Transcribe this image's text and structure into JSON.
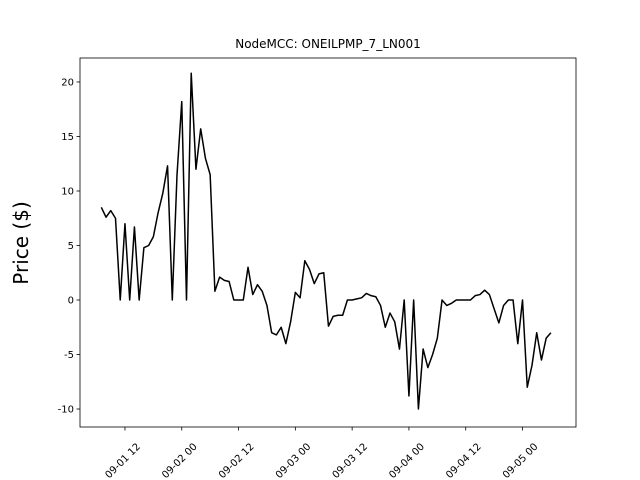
{
  "chart_data": {
    "type": "line",
    "title": "NodeMCC: ONEILPMP_7_LN001",
    "y_label": "Price ($)",
    "color": "#000000",
    "x": [
      7,
      8,
      9,
      10,
      11,
      12,
      13,
      14,
      15,
      16,
      17,
      18,
      19,
      20,
      21,
      22,
      23,
      24,
      25,
      26,
      27,
      28,
      29,
      30,
      31,
      32,
      33,
      34,
      35,
      36,
      37,
      38,
      39,
      40,
      41,
      42,
      43,
      44,
      45,
      46,
      47,
      48,
      49,
      50,
      51,
      52,
      53,
      54,
      55,
      56,
      57,
      58,
      59,
      60,
      61,
      62,
      63,
      64,
      65,
      66,
      67,
      68,
      69,
      70,
      71,
      72,
      73,
      74,
      75,
      76,
      77,
      78,
      79,
      80,
      81,
      82,
      83,
      84,
      85,
      86,
      87,
      88,
      89,
      90,
      91,
      92,
      93,
      94,
      95,
      96,
      97,
      98,
      99,
      100,
      101,
      102
    ],
    "values": [
      8.5,
      7.6,
      8.2,
      7.5,
      0,
      7.0,
      0,
      6.7,
      0,
      4.8,
      5.0,
      5.8,
      8.0,
      9.8,
      12.3,
      0,
      11.5,
      18.2,
      0,
      20.8,
      12.0,
      15.7,
      13.0,
      11.5,
      0.8,
      2.1,
      1.8,
      1.7,
      0,
      0,
      0,
      3.0,
      0.5,
      1.4,
      0.8,
      -0.5,
      -3.0,
      -3.2,
      -2.5,
      -4.0,
      -2.0,
      0.7,
      0.2,
      3.6,
      2.8,
      1.5,
      2.4,
      2.5,
      -2.4,
      -1.5,
      -1.4,
      -1.4,
      0,
      0,
      0.1,
      0.2,
      0.6,
      0.4,
      0.3,
      -0.5,
      -2.5,
      -1.2,
      -2.0,
      -4.5,
      0,
      -8.8,
      0,
      -10,
      -4.5,
      -6.2,
      -5.0,
      -3.5,
      0,
      -0.5,
      -0.3,
      0,
      0,
      0,
      0,
      0.4,
      0.5,
      0.9,
      0.5,
      -0.8,
      -2.1,
      -0.5,
      0,
      0,
      -4.0,
      0,
      -8.0,
      -6.0,
      -3.0,
      -5.5,
      -3.5,
      -3.0
    ],
    "xlim": [
      2.5,
      107.3
    ],
    "xticks": [
      {
        "value": 12,
        "label": "09-01 12"
      },
      {
        "value": 24,
        "label": "09-02 00"
      },
      {
        "value": 36,
        "label": "09-02 12"
      },
      {
        "value": 48,
        "label": "09-03 00"
      },
      {
        "value": 60,
        "label": "09-03 12"
      },
      {
        "value": 72,
        "label": "09-04 00"
      },
      {
        "value": 84,
        "label": "09-04 12"
      },
      {
        "value": 96,
        "label": "09-05 00"
      }
    ],
    "ylim": [
      -11.65,
      22.2
    ],
    "yticks": [
      -10,
      -5,
      0,
      5,
      10,
      15,
      20
    ]
  }
}
